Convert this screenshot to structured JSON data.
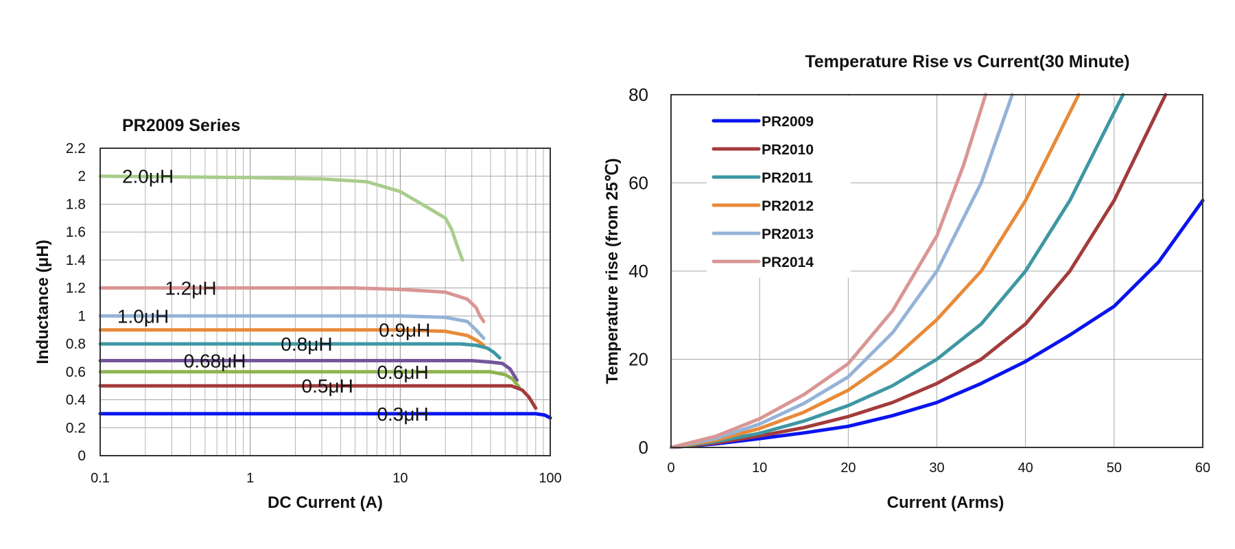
{
  "chart_data": [
    {
      "type": "line",
      "title": "PR2009 Series",
      "xlabel": "DC Current (A)",
      "ylabel": "Inductance (μH)",
      "xscale": "log",
      "xlim": [
        0.1,
        100
      ],
      "ylim": [
        0,
        2.2
      ],
      "xticks": [
        "0.1",
        "1",
        "10",
        "100"
      ],
      "yticks": [
        "0",
        "0.2",
        "0.4",
        "0.6",
        "0.8",
        "1",
        "1.2",
        "1.4",
        "1.6",
        "1.8",
        "2",
        "2.2"
      ],
      "grid": true,
      "series": [
        {
          "name": "2.0μH",
          "color": "#a9cd8c",
          "x": [
            0.1,
            1,
            3,
            6,
            10,
            15,
            20,
            22,
            24,
            26
          ],
          "y": [
            2.0,
            1.99,
            1.98,
            1.96,
            1.89,
            1.78,
            1.7,
            1.62,
            1.5,
            1.4
          ]
        },
        {
          "name": "1.2μH",
          "color": "#d99694",
          "x": [
            0.1,
            1,
            5,
            10,
            20,
            28,
            32,
            34,
            36
          ],
          "y": [
            1.2,
            1.2,
            1.2,
            1.19,
            1.17,
            1.12,
            1.06,
            1.0,
            0.96
          ]
        },
        {
          "name": "1.0μH",
          "color": "#95b3d7",
          "x": [
            0.1,
            1,
            10,
            20,
            28,
            32,
            36
          ],
          "y": [
            1.0,
            1.0,
            1.0,
            0.99,
            0.96,
            0.9,
            0.84
          ]
        },
        {
          "name": "0.9μH",
          "color": "#e88a38",
          "x": [
            0.1,
            1,
            10,
            20,
            28,
            33,
            36
          ],
          "y": [
            0.9,
            0.9,
            0.9,
            0.89,
            0.86,
            0.82,
            0.79
          ]
        },
        {
          "name": "0.8μH",
          "color": "#3e97a3",
          "x": [
            0.1,
            1,
            10,
            25,
            32,
            38,
            42,
            46
          ],
          "y": [
            0.8,
            0.8,
            0.8,
            0.8,
            0.79,
            0.77,
            0.74,
            0.7
          ]
        },
        {
          "name": "0.68μH",
          "color": "#74559b",
          "x": [
            0.1,
            1,
            10,
            30,
            40,
            48,
            54,
            60
          ],
          "y": [
            0.68,
            0.68,
            0.68,
            0.68,
            0.67,
            0.66,
            0.62,
            0.54
          ]
        },
        {
          "name": "0.6μH",
          "color": "#8fb350",
          "x": [
            0.1,
            1,
            10,
            30,
            40,
            50,
            56,
            62
          ],
          "y": [
            0.6,
            0.6,
            0.6,
            0.6,
            0.6,
            0.58,
            0.55,
            0.49
          ]
        },
        {
          "name": "0.5μH",
          "color": "#a33b3b",
          "x": [
            0.1,
            1,
            10,
            40,
            55,
            65,
            72,
            80
          ],
          "y": [
            0.5,
            0.5,
            0.5,
            0.5,
            0.5,
            0.47,
            0.42,
            0.34
          ]
        },
        {
          "name": "0.3μH",
          "color": "#0a14ee",
          "x": [
            0.1,
            1,
            10,
            50,
            80,
            92,
            100
          ],
          "y": [
            0.3,
            0.3,
            0.3,
            0.3,
            0.3,
            0.29,
            0.27
          ]
        }
      ],
      "annotations": [
        {
          "text": "2.0μH",
          "x": 0.14,
          "y": 2.0
        },
        {
          "text": "1.2μH",
          "x": 0.27,
          "y": 1.2
        },
        {
          "text": "1.0μH",
          "x": 0.13,
          "y": 1.0
        },
        {
          "text": "0.9μH",
          "x": 7.2,
          "y": 0.9
        },
        {
          "text": "0.8μH",
          "x": 1.6,
          "y": 0.8
        },
        {
          "text": "0.68μH",
          "x": 0.36,
          "y": 0.68
        },
        {
          "text": "0.6μH",
          "x": 7.0,
          "y": 0.6
        },
        {
          "text": "0.5μH",
          "x": 2.2,
          "y": 0.5
        },
        {
          "text": "0.3μH",
          "x": 7.0,
          "y": 0.3
        }
      ]
    },
    {
      "type": "line",
      "title": "Temperature Rise vs Current(30 Minute)",
      "xlabel": "Current (Arms)",
      "ylabel": "Temperature rise (from 25℃)",
      "xlim": [
        0,
        60
      ],
      "ylim": [
        0,
        80
      ],
      "xticks": [
        "0",
        "10",
        "20",
        "30",
        "40",
        "50",
        "60"
      ],
      "yticks": [
        "0",
        "20",
        "40",
        "60",
        "80"
      ],
      "grid": true,
      "legend_position": "top-left",
      "series": [
        {
          "name": "PR2009",
          "color": "#0a14ee",
          "x": [
            0,
            5,
            10,
            15,
            20,
            25,
            30,
            35,
            40,
            45,
            50,
            55,
            60
          ],
          "y": [
            0,
            0.8,
            2,
            3.3,
            4.8,
            7.2,
            10.2,
            14.5,
            19.5,
            25.5,
            32,
            42,
            56
          ]
        },
        {
          "name": "PR2010",
          "color": "#a33b3b",
          "x": [
            0,
            5,
            10,
            15,
            20,
            25,
            30,
            35,
            40,
            45,
            50,
            55.8
          ],
          "y": [
            0,
            1,
            2.6,
            4.5,
            7,
            10.2,
            14.5,
            20,
            28,
            40,
            56,
            80
          ]
        },
        {
          "name": "PR2011",
          "color": "#3e97a3",
          "x": [
            0,
            5,
            10,
            15,
            20,
            25,
            30,
            35,
            40,
            45,
            51
          ],
          "y": [
            0,
            1.3,
            3.2,
            6,
            9.5,
            14,
            20,
            28,
            40,
            56,
            80
          ]
        },
        {
          "name": "PR2012",
          "color": "#e88a38",
          "x": [
            0,
            5,
            10,
            15,
            20,
            25,
            30,
            35,
            40,
            46
          ],
          "y": [
            0,
            1.6,
            4.3,
            8,
            13,
            20,
            29,
            40,
            56,
            80
          ]
        },
        {
          "name": "PR2013",
          "color": "#95b3d7",
          "x": [
            0,
            5,
            10,
            15,
            20,
            25,
            30,
            35,
            38.5
          ],
          "y": [
            0,
            2,
            5.3,
            10,
            16,
            26,
            40,
            60,
            80
          ]
        },
        {
          "name": "PR2014",
          "color": "#d99694",
          "x": [
            0,
            5,
            10,
            15,
            20,
            25,
            30,
            33,
            35.5
          ],
          "y": [
            0,
            2.5,
            6.5,
            12,
            19,
            31,
            48,
            64,
            80
          ]
        }
      ]
    }
  ]
}
